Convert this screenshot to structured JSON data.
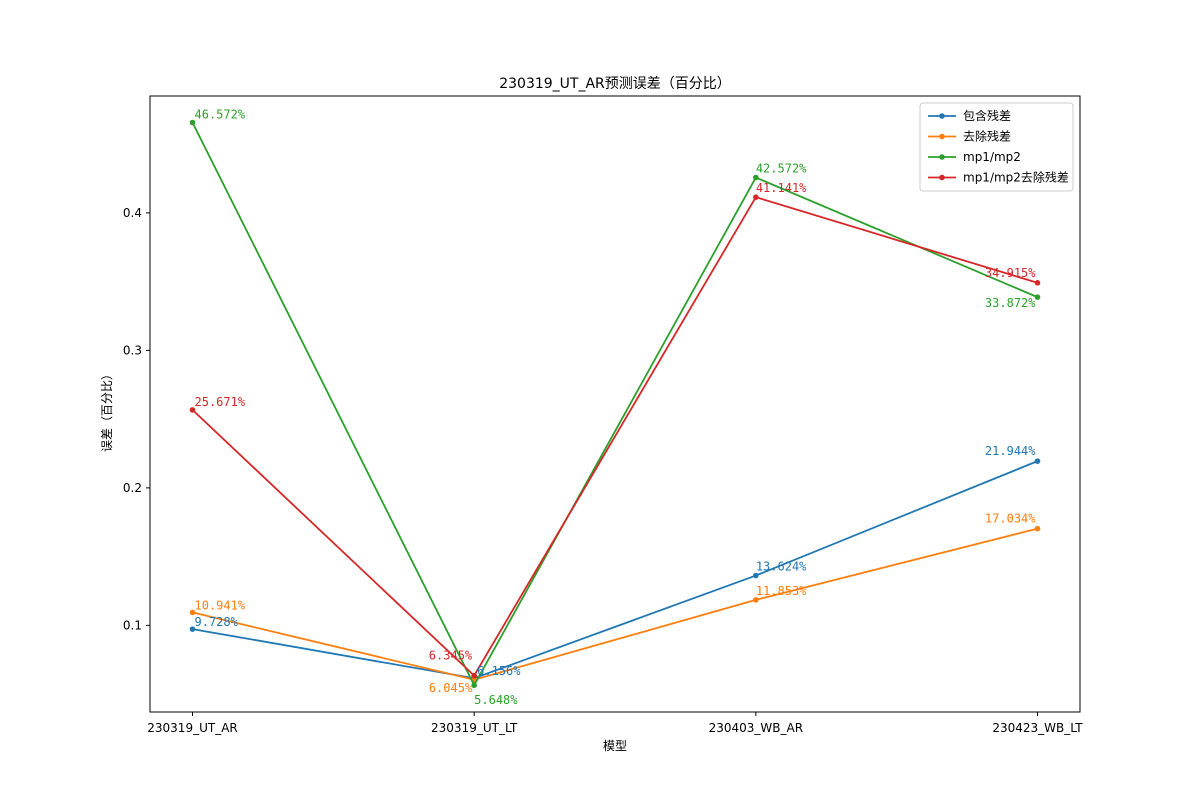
{
  "chart_data": {
    "type": "line",
    "title": "230319_UT_AR预测误差（百分比）",
    "xlabel": "模型",
    "ylabel": "误差（百分比）",
    "categories": [
      "230319_UT_AR",
      "230319_UT_LT",
      "230403_WB_AR",
      "230423_WB_LT"
    ],
    "ylim": [
      0.037,
      0.485
    ],
    "yticks": [
      0.1,
      0.2,
      0.3,
      0.4
    ],
    "ytick_labels": [
      "0.1",
      "0.2",
      "0.3",
      "0.4"
    ],
    "grid": false,
    "legend_position": "top-right",
    "series": [
      {
        "name": "包含残差",
        "color": "#1f77b4",
        "values": [
          0.09728,
          0.06156,
          0.13624,
          0.21944
        ],
        "labels": [
          "9.728%",
          "6.156%",
          "13.624%",
          "21.944%"
        ]
      },
      {
        "name": "去除残差",
        "color": "#ff7f0e",
        "values": [
          0.10941,
          0.06045,
          0.11853,
          0.17034
        ],
        "labels": [
          "10.941%",
          "6.045%",
          "11.853%",
          "17.034%"
        ]
      },
      {
        "name": "mp1/mp2",
        "color": "#2ca02c",
        "values": [
          0.46572,
          0.05648,
          0.42572,
          0.33872
        ],
        "labels": [
          "46.572%",
          "5.648%",
          "42.572%",
          "33.872%"
        ]
      },
      {
        "name": "mp1/mp2去除残差",
        "color": "#d62728",
        "values": [
          0.25671,
          0.06345,
          0.41141,
          0.34915
        ],
        "labels": [
          "25.671%",
          "6.345%",
          "41.141%",
          "34.915%"
        ]
      }
    ]
  }
}
